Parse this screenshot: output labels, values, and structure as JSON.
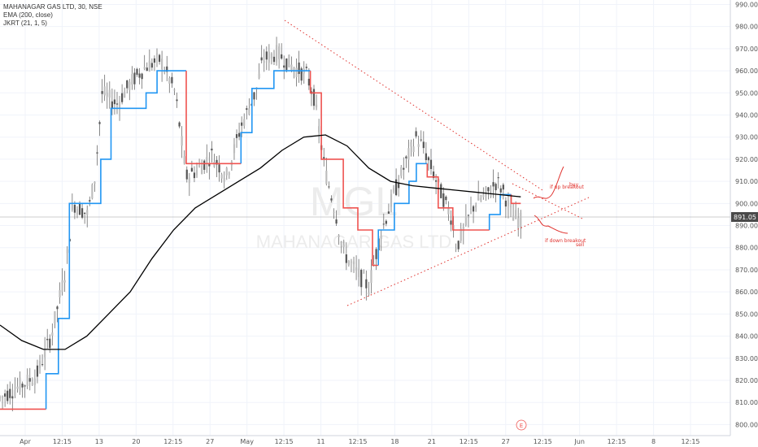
{
  "header": {
    "title_line": "MAHANAGAR GAS LTD, 30, NSE",
    "indicator_ema": "EMA (200, close)",
    "indicator_jkrt": "JKRT (21, 1, 5)"
  },
  "watermark": {
    "symbol": "MGL",
    "name": "MAHANAGAR GAS LTD"
  },
  "chart_data": {
    "type": "line",
    "title": "MAHANAGAR GAS LTD, 30, NSE",
    "ylim": [
      795,
      992
    ],
    "y_ticks": [
      800,
      810,
      820,
      830,
      840,
      850,
      860,
      870,
      880,
      890,
      900,
      910,
      920,
      930,
      940,
      950,
      960,
      970,
      980,
      990
    ],
    "y_tick_labels": [
      "800.00",
      "810.00",
      "820.00",
      "830.00",
      "840.00",
      "850.00",
      "860.00",
      "870.00",
      "880.00",
      "890.00",
      "900.00",
      "910.00",
      "920.00",
      "930.00",
      "940.00",
      "950.00",
      "960.00",
      "970.00",
      "980.00",
      "990.00"
    ],
    "x_tick_labels": [
      "Apr",
      "12:15",
      "13",
      "20",
      "12:15",
      "27",
      "May",
      "12:15",
      "11",
      "12:15",
      "18",
      "21",
      "12:15",
      "27",
      "12:15",
      "Jun",
      "12:15",
      "8",
      "12:15"
    ],
    "last_price": 891.05,
    "last_price_label": "891.05",
    "event_marker": "E",
    "series": [
      {
        "name": "EMA (200, close)",
        "color": "#000000",
        "values": [
          845,
          838,
          834,
          834,
          840,
          850,
          860,
          875,
          888,
          898,
          904,
          910,
          916,
          924,
          930,
          931,
          926,
          916,
          910,
          908,
          907,
          906,
          905,
          904,
          903
        ]
      },
      {
        "name": "JKRT (21, 1, 5)",
        "up_color": "#2196f3",
        "down_color": "#ef5350"
      }
    ],
    "trendlines": [
      {
        "name": "upper-trendline",
        "color": "#e0312d",
        "style": "dotted",
        "from": [
          0.376,
          983
        ],
        "to": [
          0.716,
          903
        ]
      },
      {
        "name": "lower-trendline",
        "color": "#e0312d",
        "style": "dotted",
        "from": [
          0.458,
          852
        ],
        "to": [
          0.777,
          900
        ]
      }
    ],
    "annotations": [
      "if up breakout",
      "buy",
      "if down breakout",
      "sell"
    ]
  }
}
